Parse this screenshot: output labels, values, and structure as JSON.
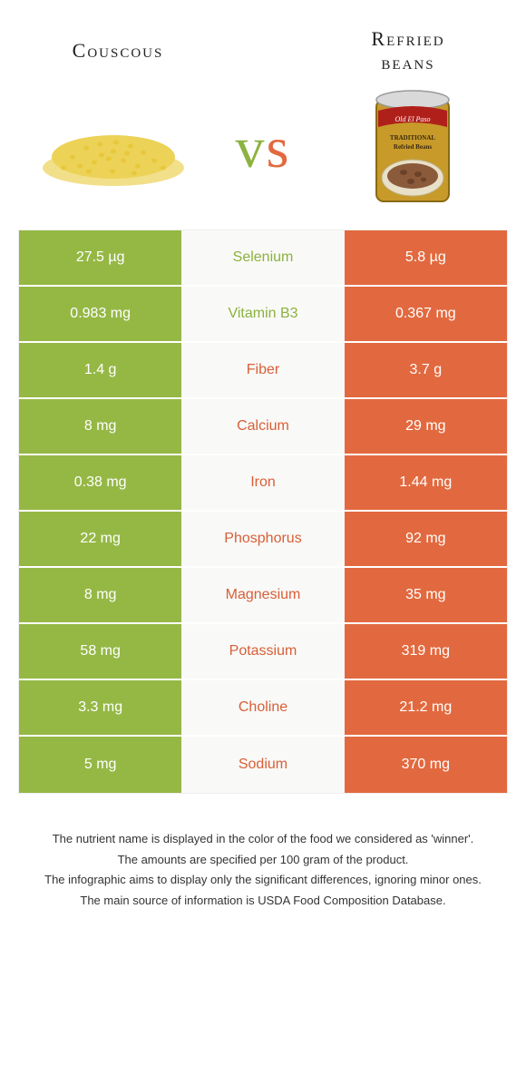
{
  "colors": {
    "left": "#95b845",
    "right": "#e2693f",
    "mid_bg": "#f9f9f7",
    "left_text_on_mid": "#8cb23f",
    "right_text_on_mid": "#d85f38"
  },
  "header": {
    "left_title": "Couscous",
    "right_title_line1": "Refried",
    "right_title_line2": "beans",
    "vs_v": "v",
    "vs_s": "s"
  },
  "rows": [
    {
      "left": "27.5 µg",
      "label": "Selenium",
      "right": "5.8 µg",
      "winner": "left"
    },
    {
      "left": "0.983 mg",
      "label": "Vitamin B3",
      "right": "0.367 mg",
      "winner": "left"
    },
    {
      "left": "1.4 g",
      "label": "Fiber",
      "right": "3.7 g",
      "winner": "right"
    },
    {
      "left": "8 mg",
      "label": "Calcium",
      "right": "29 mg",
      "winner": "right"
    },
    {
      "left": "0.38 mg",
      "label": "Iron",
      "right": "1.44 mg",
      "winner": "right"
    },
    {
      "left": "22 mg",
      "label": "Phosphorus",
      "right": "92 mg",
      "winner": "right"
    },
    {
      "left": "8 mg",
      "label": "Magnesium",
      "right": "35 mg",
      "winner": "right"
    },
    {
      "left": "58 mg",
      "label": "Potassium",
      "right": "319 mg",
      "winner": "right"
    },
    {
      "left": "3.3 mg",
      "label": "Choline",
      "right": "21.2 mg",
      "winner": "right"
    },
    {
      "left": "5 mg",
      "label": "Sodium",
      "right": "370 mg",
      "winner": "right"
    }
  ],
  "footnotes": [
    "The nutrient name is displayed in the color of the food we considered as 'winner'.",
    "The amounts are specified per 100 gram of the product.",
    "The infographic aims to display only the significant differences, ignoring minor ones.",
    "The main source of information is USDA Food Composition Database."
  ]
}
